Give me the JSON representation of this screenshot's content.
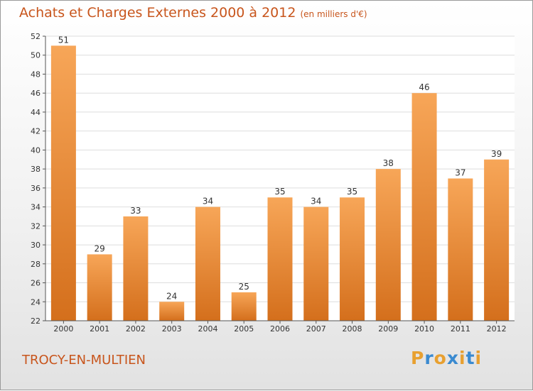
{
  "header": {
    "title": "Achats et Charges Externes 2000 à 2012",
    "unit": "(en milliers d'€)"
  },
  "footer": {
    "commune": "TROCY-EN-MULTIEN",
    "logo_text": "Proxiti"
  },
  "colors": {
    "bar_light": "#f7a658",
    "bar_dark": "#d46f1c",
    "title": "#c8551c",
    "logo": [
      "#e8a030",
      "#3a8ad0",
      "#e8a030",
      "#3a8ad0",
      "#e8a030",
      "#3a8ad0",
      "#e8a030"
    ]
  },
  "chart_data": {
    "type": "bar",
    "title": "Achats et Charges Externes 2000 à 2012",
    "categories": [
      "2000",
      "2001",
      "2002",
      "2003",
      "2004",
      "2005",
      "2006",
      "2007",
      "2008",
      "2009",
      "2010",
      "2011",
      "2012"
    ],
    "values": [
      51,
      29,
      33,
      24,
      34,
      25,
      35,
      34,
      35,
      38,
      46,
      37,
      39
    ],
    "ylim": [
      22,
      52
    ],
    "yticks": [
      22,
      24,
      26,
      28,
      30,
      32,
      34,
      36,
      38,
      40,
      42,
      44,
      46,
      48,
      50,
      52
    ],
    "grid": true,
    "xlabel": "",
    "ylabel": ""
  }
}
